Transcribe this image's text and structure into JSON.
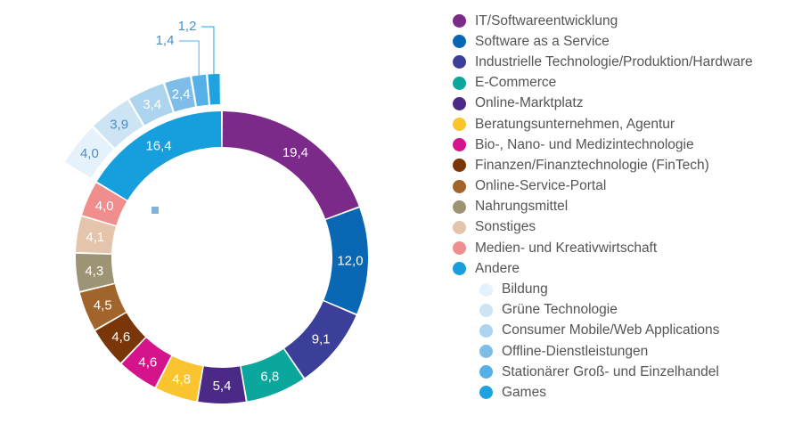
{
  "chart_data": {
    "type": "pie",
    "variant": "donut-with-breakout",
    "slices": [
      {
        "label": "IT/Softwareentwicklung",
        "value": 19.4,
        "display": "19,4",
        "color": "#7b2a8a"
      },
      {
        "label": "Software as a Service",
        "value": 12.0,
        "display": "12,0",
        "color": "#0a67b4"
      },
      {
        "label": "Industrielle Technologie/Produktion/Hardware",
        "value": 9.1,
        "display": "9,1",
        "color": "#3c3f99"
      },
      {
        "label": "E-Commerce",
        "value": 6.8,
        "display": "6,8",
        "color": "#0ba69c"
      },
      {
        "label": "Online-Marktplatz",
        "value": 5.4,
        "display": "5,4",
        "color": "#4a2a86"
      },
      {
        "label": "Beratungsunternehmen, Agentur",
        "value": 4.8,
        "display": "4,8",
        "color": "#f9c42e"
      },
      {
        "label": "Bio-, Nano- und Medizintechnologie",
        "value": 4.6,
        "display": "4,6",
        "color": "#d5148c"
      },
      {
        "label": "Finanzen/Finanztechnologie (FinTech)",
        "value": 4.6,
        "display": "4,6",
        "color": "#7a3608"
      },
      {
        "label": "Online-Service-Portal",
        "value": 4.5,
        "display": "4,5",
        "color": "#a1642a"
      },
      {
        "label": "Nahrungsmittel",
        "value": 4.3,
        "display": "4,3",
        "color": "#9c9474"
      },
      {
        "label": "Sonstiges",
        "value": 4.1,
        "display": "4,1",
        "color": "#e4c4ab"
      },
      {
        "label": "Medien- und Kreativwirtschaft",
        "value": 4.0,
        "display": "4,0",
        "color": "#f08d8d"
      },
      {
        "label": "Andere",
        "value": 16.4,
        "display": "16,4",
        "color": "#179fdd"
      }
    ],
    "breakout": {
      "parent": "Andere",
      "items": [
        {
          "label": "Bildung",
          "value": 4.0,
          "display": "4,0",
          "color": "#e6f2fb"
        },
        {
          "label": "Grüne Technologie",
          "value": 3.9,
          "display": "3,9",
          "color": "#cde4f5"
        },
        {
          "label": "Consumer Mobile/Web Applications",
          "value": 3.4,
          "display": "3,4",
          "color": "#acd4ef"
        },
        {
          "label": "Offline-Dienstleistungen",
          "value": 2.4,
          "display": "2,4",
          "color": "#7fbde9"
        },
        {
          "label": "Stationärer Groß- und Einzelhandel",
          "value": 1.4,
          "display": "1,4",
          "color": "#54b0e6"
        },
        {
          "label": "Games",
          "value": 1.2,
          "display": "1,2",
          "color": "#1fa3e0"
        }
      ]
    },
    "legend_placement": "right"
  }
}
